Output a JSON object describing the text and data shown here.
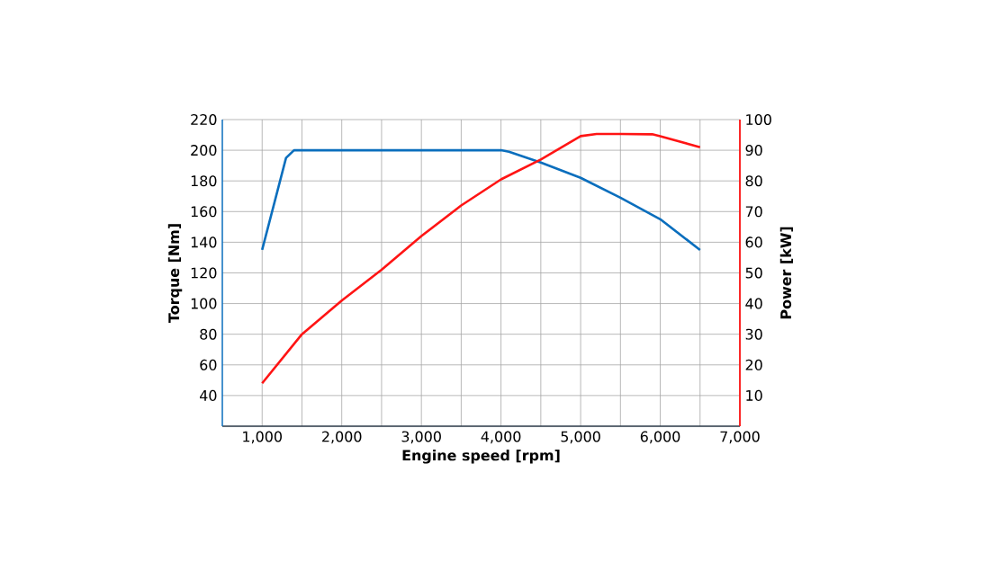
{
  "chart_data": {
    "type": "line",
    "xlabel": "Engine speed [rpm]",
    "ylabel": "Torque [Nm]",
    "y2label": "Power [kW]",
    "xlim": [
      500,
      7000
    ],
    "ylim": [
      20,
      220
    ],
    "y2lim": [
      0,
      100
    ],
    "xticks": [
      {
        "value": 1000,
        "label": "1,000"
      },
      {
        "value": 2000,
        "label": "2,000"
      },
      {
        "value": 3000,
        "label": "3,000"
      },
      {
        "value": 4000,
        "label": "4,000"
      },
      {
        "value": 5000,
        "label": "5,000"
      },
      {
        "value": 6000,
        "label": "6,000"
      },
      {
        "value": 7000,
        "label": "7,000"
      }
    ],
    "yticks": [
      40,
      60,
      80,
      100,
      120,
      140,
      160,
      180,
      200,
      220
    ],
    "y2ticks": [
      10,
      20,
      30,
      40,
      50,
      60,
      70,
      80,
      90,
      100
    ],
    "grid": true,
    "marker": "none",
    "line_style": "solid",
    "series": [
      {
        "color": "#0a6ebd",
        "axis": "y",
        "x": [
          1000,
          1300,
          1400,
          4000,
          4100,
          4500,
          5000,
          5500,
          6000,
          6500
        ],
        "values": [
          135,
          195,
          200,
          200,
          199,
          192,
          182,
          169,
          155,
          135
        ]
      },
      {
        "color": "#ff1414",
        "axis": "y2",
        "x": [
          1000,
          1500,
          2000,
          2500,
          3000,
          3500,
          4000,
          4500,
          5000,
          5200,
          5500,
          5900,
          6000,
          6500
        ],
        "values": [
          14,
          30,
          41,
          51,
          62,
          72,
          80.5,
          87,
          94.6,
          95.3,
          95.3,
          95.2,
          94.6,
          91
        ]
      }
    ]
  }
}
